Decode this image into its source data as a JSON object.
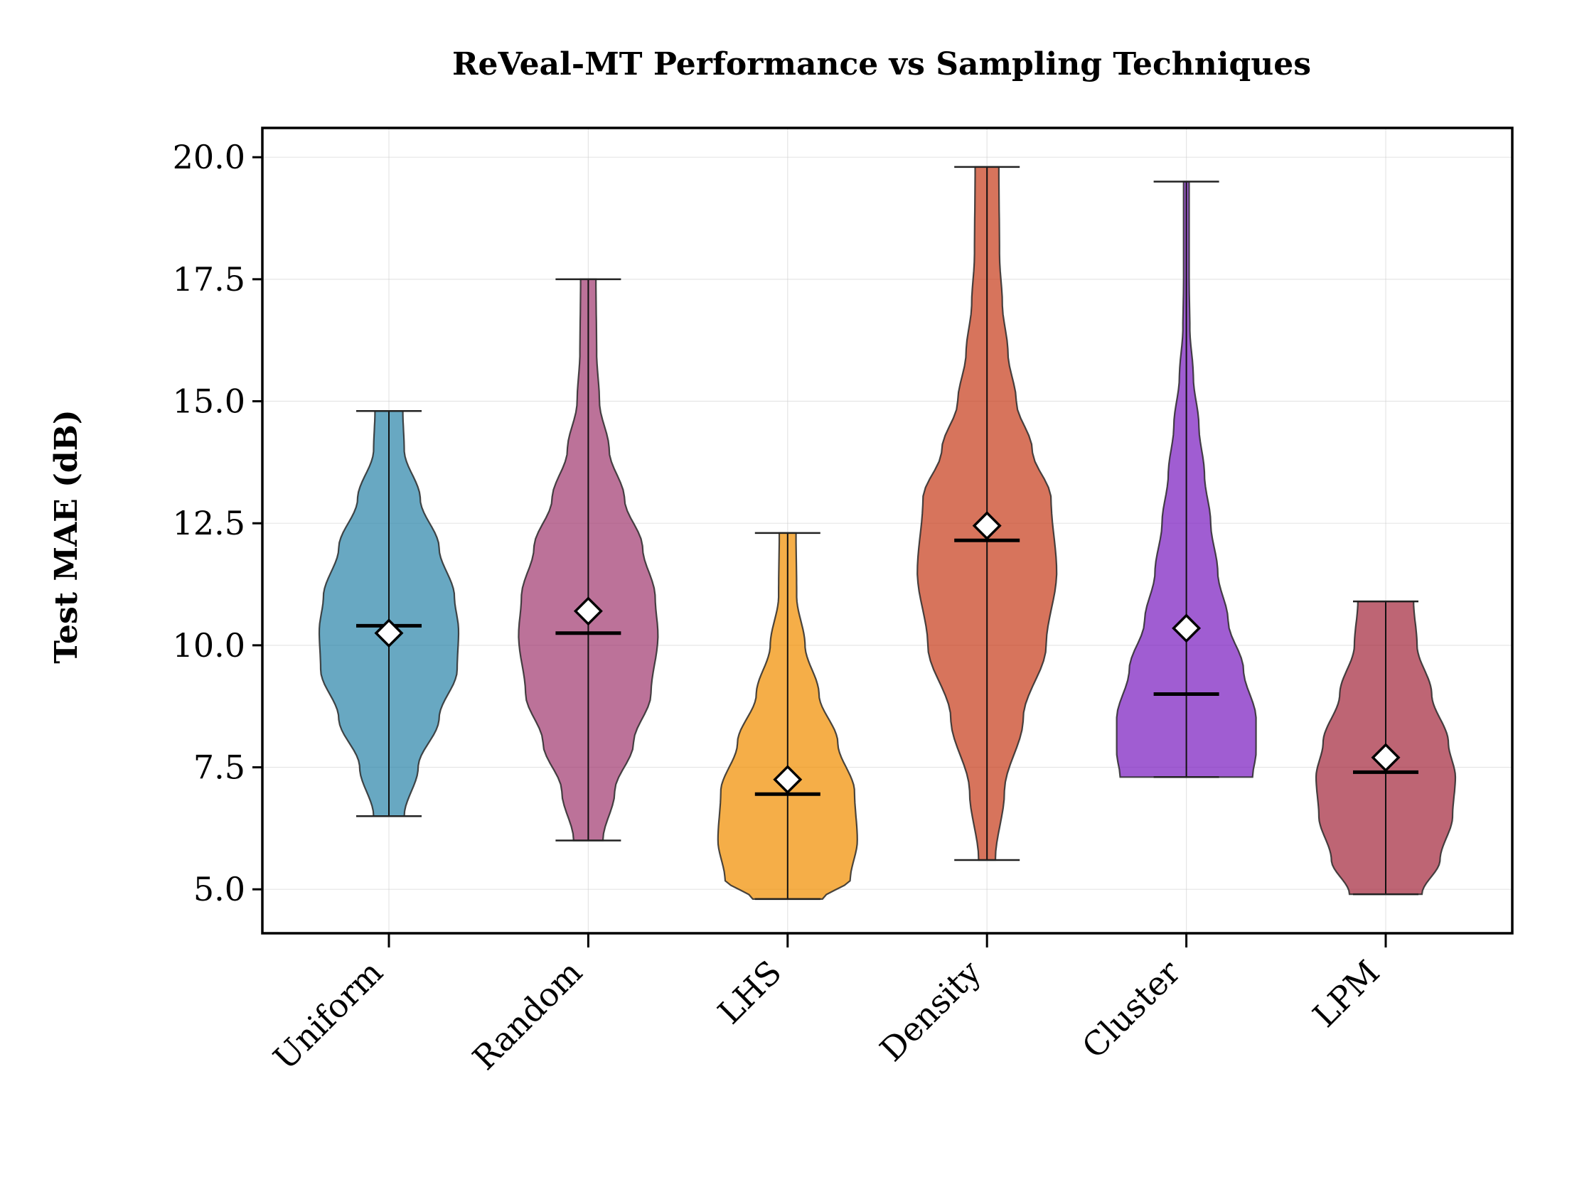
{
  "chart_data": {
    "type": "violin",
    "title": "ReVeal-MT Performance vs Sampling Techniques",
    "xlabel": "",
    "ylabel": "Test MAE (dB)",
    "ylim": [
      4.1,
      20.6
    ],
    "yticks": [
      5.0,
      7.5,
      10.0,
      12.5,
      15.0,
      17.5,
      20.0
    ],
    "ytick_labels": [
      "5.0",
      "7.5",
      "10.0",
      "12.5",
      "15.0",
      "17.5",
      "20.0"
    ],
    "grid": true,
    "mean_marker": "white-diamond",
    "median_marker": "black-horizontal-line",
    "categories": [
      "Uniform",
      "Random",
      "LHS",
      "Density",
      "Cluster",
      "LPM"
    ],
    "series": [
      {
        "name": "Uniform",
        "color": "#2E86AB",
        "min": 6.5,
        "max": 14.8,
        "median": 10.4,
        "mean": 10.25,
        "density_profile": [
          [
            6.5,
            0.22
          ],
          [
            7.5,
            0.42
          ],
          [
            8.5,
            0.72
          ],
          [
            9.5,
            0.98
          ],
          [
            10.3,
            1.0
          ],
          [
            11.0,
            0.94
          ],
          [
            12.0,
            0.72
          ],
          [
            13.0,
            0.45
          ],
          [
            14.0,
            0.22
          ],
          [
            14.8,
            0.2
          ]
        ]
      },
      {
        "name": "Random",
        "color": "#A23B72",
        "min": 6.0,
        "max": 17.5,
        "median": 10.25,
        "mean": 10.7,
        "density_profile": [
          [
            6.0,
            0.21
          ],
          [
            7.0,
            0.38
          ],
          [
            8.0,
            0.65
          ],
          [
            9.0,
            0.9
          ],
          [
            10.2,
            1.0
          ],
          [
            11.0,
            0.96
          ],
          [
            12.0,
            0.78
          ],
          [
            13.0,
            0.52
          ],
          [
            14.0,
            0.3
          ],
          [
            15.0,
            0.16
          ],
          [
            16.0,
            0.12
          ],
          [
            17.5,
            0.11
          ]
        ]
      },
      {
        "name": "LHS",
        "color": "#F18F01",
        "min": 4.8,
        "max": 12.3,
        "median": 6.95,
        "mean": 7.25,
        "density_profile": [
          [
            4.8,
            0.5
          ],
          [
            5.2,
            0.9
          ],
          [
            6.0,
            1.0
          ],
          [
            7.0,
            0.96
          ],
          [
            8.0,
            0.72
          ],
          [
            9.0,
            0.45
          ],
          [
            10.0,
            0.25
          ],
          [
            11.0,
            0.13
          ],
          [
            12.3,
            0.12
          ]
        ]
      },
      {
        "name": "Density",
        "color": "#C73E1D",
        "min": 5.6,
        "max": 19.8,
        "median": 12.15,
        "mean": 12.45,
        "density_profile": [
          [
            5.6,
            0.12
          ],
          [
            7.0,
            0.25
          ],
          [
            8.5,
            0.52
          ],
          [
            10.0,
            0.85
          ],
          [
            11.5,
            1.0
          ],
          [
            13.0,
            0.92
          ],
          [
            14.0,
            0.65
          ],
          [
            15.0,
            0.42
          ],
          [
            16.0,
            0.3
          ],
          [
            17.0,
            0.22
          ],
          [
            18.0,
            0.18
          ],
          [
            19.8,
            0.17
          ]
        ]
      },
      {
        "name": "Cluster",
        "color": "#7B1FC0",
        "min": 7.3,
        "max": 19.5,
        "median": 9.0,
        "mean": 10.35,
        "density_profile": [
          [
            7.3,
            0.95
          ],
          [
            7.8,
            1.0
          ],
          [
            8.5,
            1.0
          ],
          [
            9.5,
            0.82
          ],
          [
            10.5,
            0.6
          ],
          [
            11.5,
            0.45
          ],
          [
            12.5,
            0.35
          ],
          [
            13.5,
            0.26
          ],
          [
            14.5,
            0.18
          ],
          [
            15.5,
            0.1
          ],
          [
            16.5,
            0.05
          ],
          [
            17.5,
            0.04
          ],
          [
            19.5,
            0.04
          ]
        ]
      },
      {
        "name": "LPM",
        "color": "#A52A3E",
        "min": 4.9,
        "max": 10.9,
        "median": 7.4,
        "mean": 7.7,
        "density_profile": [
          [
            4.9,
            0.52
          ],
          [
            5.6,
            0.78
          ],
          [
            6.5,
            0.96
          ],
          [
            7.3,
            1.0
          ],
          [
            8.0,
            0.9
          ],
          [
            9.0,
            0.66
          ],
          [
            10.0,
            0.45
          ],
          [
            10.9,
            0.4
          ]
        ]
      }
    ]
  }
}
